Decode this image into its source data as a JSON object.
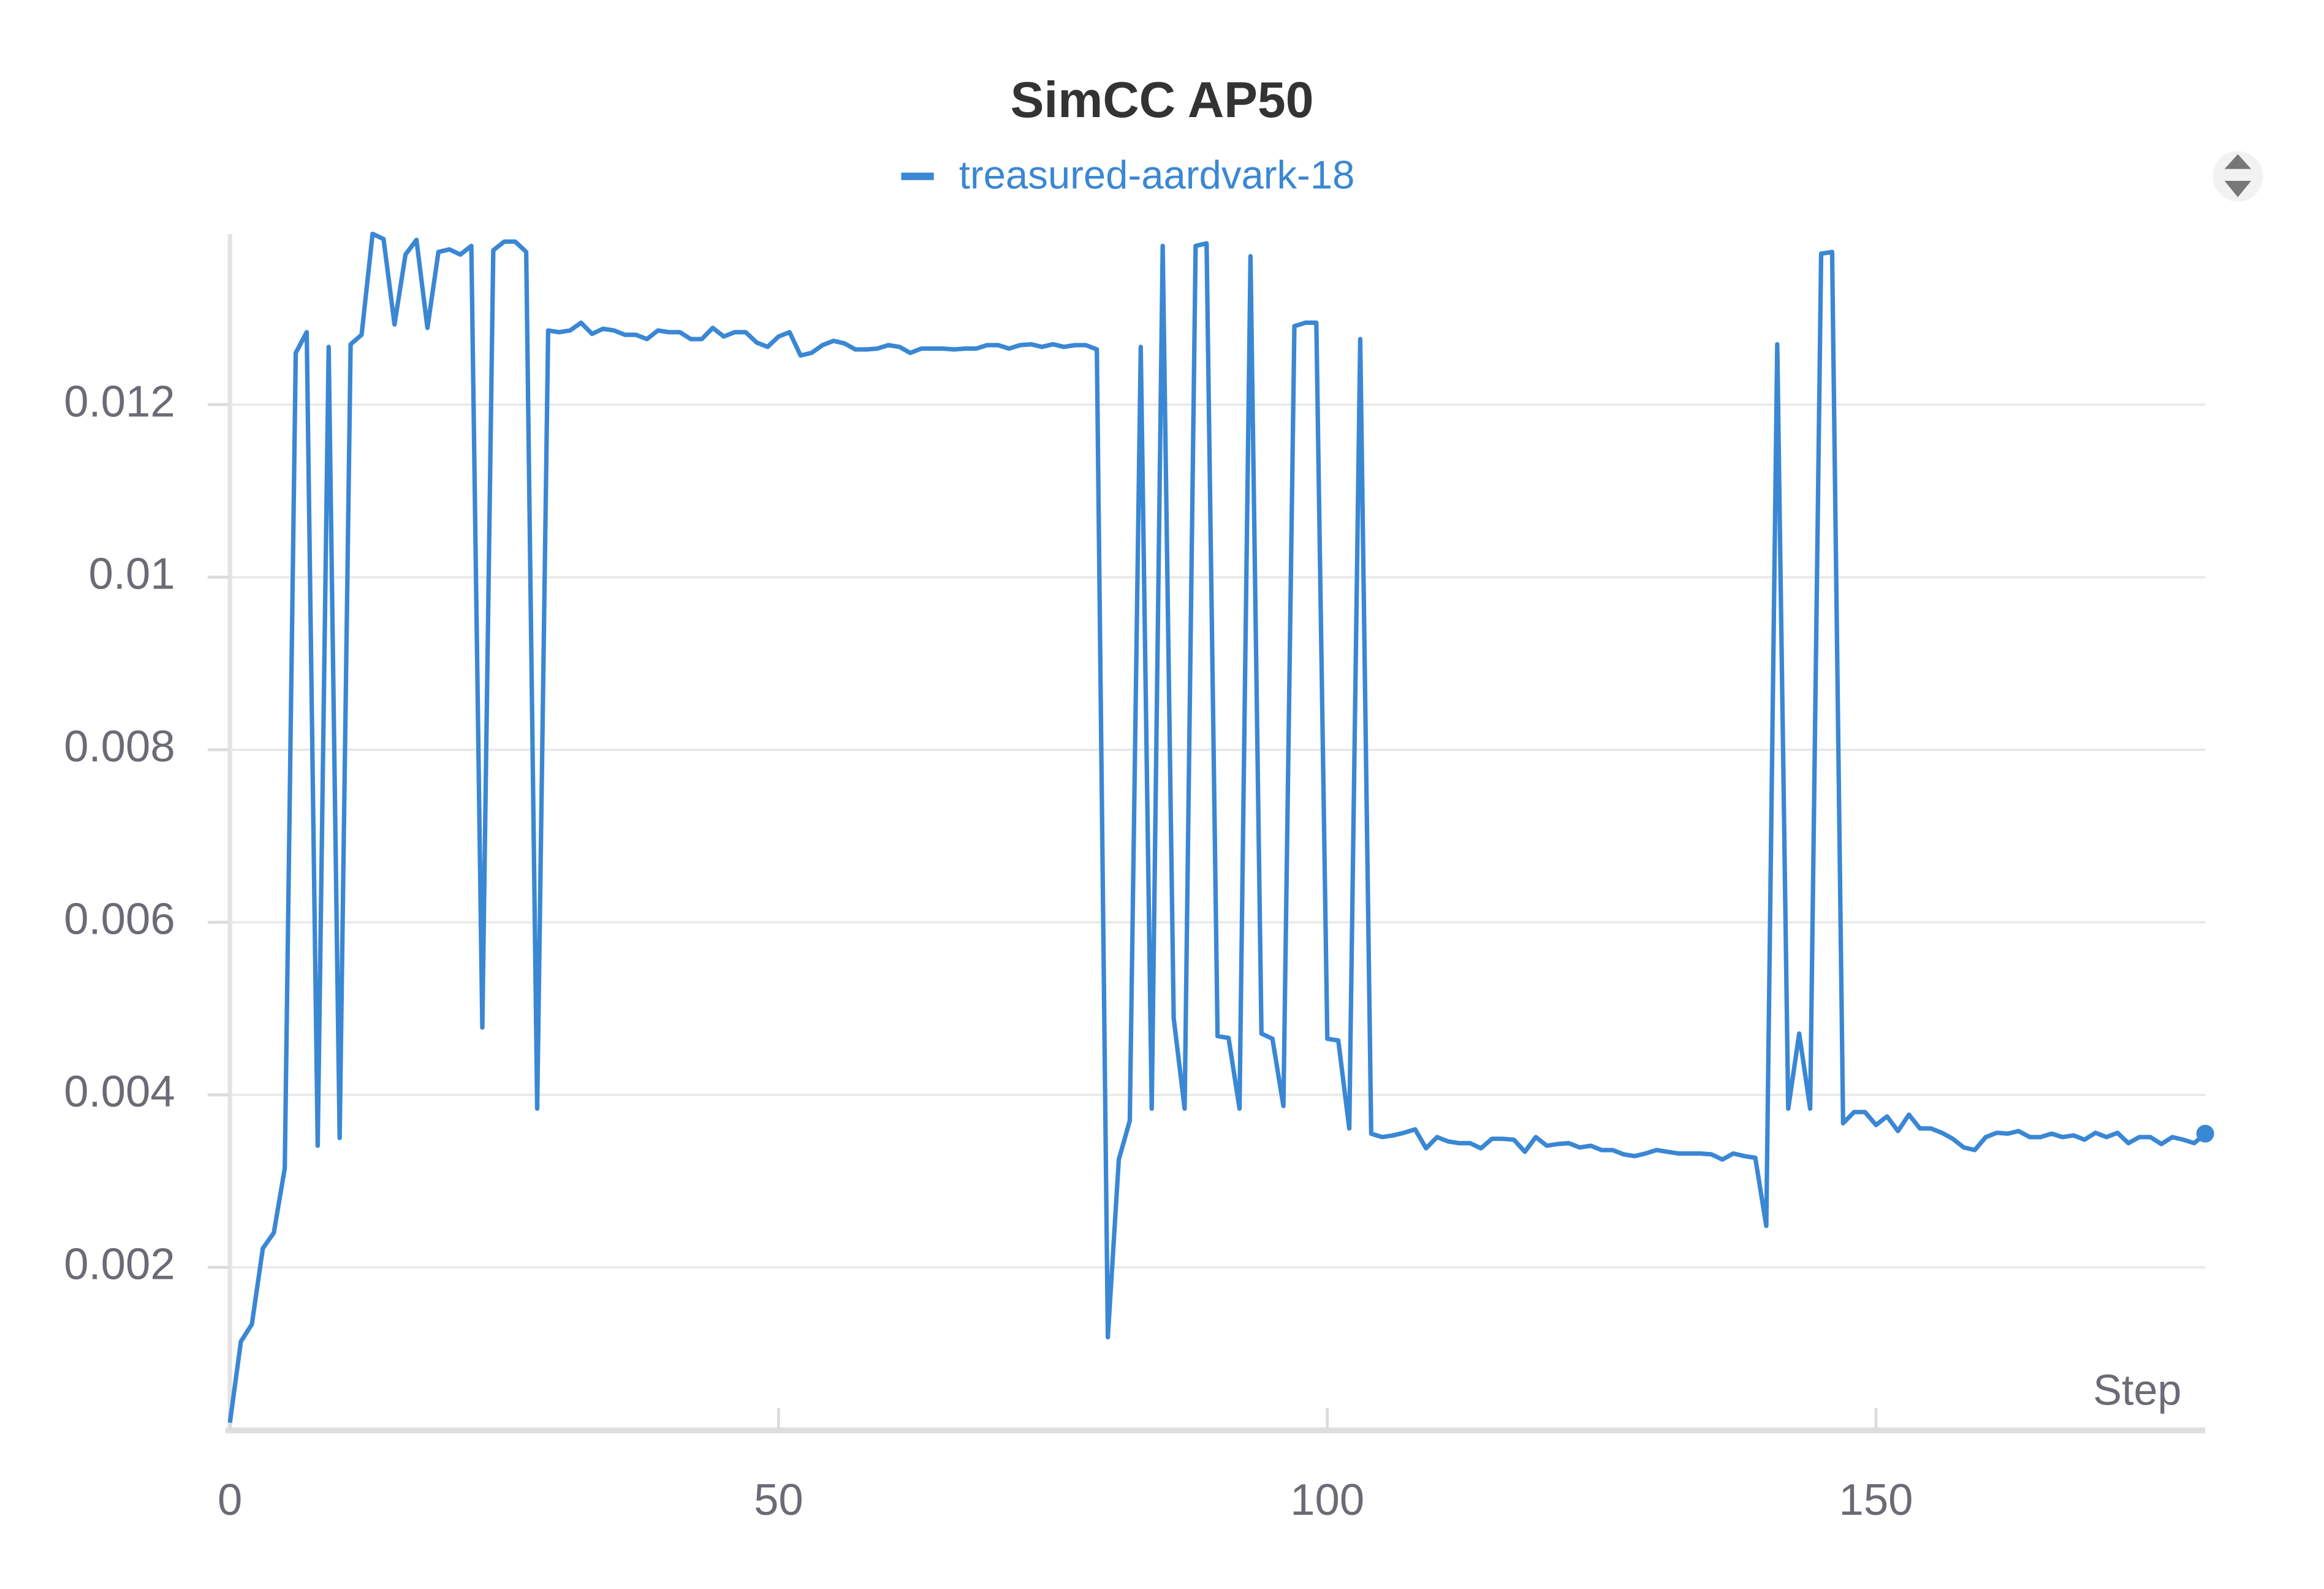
{
  "chart_data": {
    "type": "line",
    "title": "SimCC AP50",
    "x_label": "Step",
    "x": [
      0,
      1,
      2,
      3,
      4,
      5,
      6,
      7,
      8,
      9,
      10,
      11,
      12,
      13,
      14,
      15,
      16,
      17,
      18,
      19,
      20,
      21,
      22,
      23,
      24,
      25,
      26,
      27,
      28,
      29,
      30,
      31,
      32,
      33,
      34,
      35,
      36,
      37,
      38,
      39,
      40,
      41,
      42,
      43,
      44,
      45,
      46,
      47,
      48,
      49,
      50,
      51,
      52,
      53,
      54,
      55,
      56,
      57,
      58,
      59,
      60,
      61,
      62,
      63,
      64,
      65,
      66,
      67,
      68,
      69,
      70,
      71,
      72,
      73,
      74,
      75,
      76,
      77,
      78,
      79,
      80,
      81,
      82,
      83,
      84,
      85,
      86,
      87,
      88,
      89,
      90,
      91,
      92,
      93,
      94,
      95,
      96,
      97,
      98,
      99,
      100,
      101,
      102,
      103,
      104,
      105,
      106,
      107,
      108,
      109,
      110,
      111,
      112,
      113,
      114,
      115,
      116,
      117,
      118,
      119,
      120,
      121,
      122,
      123,
      124,
      125,
      126,
      127,
      128,
      129,
      130,
      131,
      132,
      133,
      134,
      135,
      136,
      137,
      138,
      139,
      140,
      141,
      142,
      143,
      144,
      145,
      146,
      147,
      148,
      149,
      150,
      151,
      152,
      153,
      154,
      155,
      156,
      157,
      158,
      159,
      160,
      161,
      162,
      163,
      164,
      165,
      166,
      167,
      168,
      169,
      170,
      171,
      172,
      173,
      174,
      175,
      176,
      177,
      178,
      179,
      180
    ],
    "series": [
      {
        "name": "treasured-aardvark-18",
        "color": "#3a87d4",
        "values": [
          0.0002,
          0.00114,
          0.00134,
          0.00222,
          0.0024,
          0.00315,
          0.0126,
          0.01284,
          0.00341,
          0.01267,
          0.0035,
          0.0127,
          0.01281,
          0.01398,
          0.01392,
          0.01293,
          0.01374,
          0.01391,
          0.01289,
          0.01377,
          0.0138,
          0.01374,
          0.01384,
          0.00478,
          0.01379,
          0.01389,
          0.01389,
          0.01377,
          0.00384,
          0.01286,
          0.01284,
          0.01286,
          0.01295,
          0.01282,
          0.01288,
          0.01286,
          0.01281,
          0.01281,
          0.01276,
          0.01286,
          0.01284,
          0.01284,
          0.01276,
          0.01276,
          0.01289,
          0.01279,
          0.01284,
          0.01284,
          0.01272,
          0.01267,
          0.01279,
          0.01284,
          0.01257,
          0.0126,
          0.01269,
          0.01274,
          0.01271,
          0.01264,
          0.01264,
          0.01265,
          0.01269,
          0.01267,
          0.0126,
          0.01265,
          0.01265,
          0.01265,
          0.01264,
          0.01265,
          0.01265,
          0.01269,
          0.01269,
          0.01265,
          0.01269,
          0.0127,
          0.01267,
          0.0127,
          0.01267,
          0.01269,
          0.01269,
          0.01264,
          0.00119,
          0.00325,
          0.0037,
          0.01267,
          0.00384,
          0.01384,
          0.00489,
          0.00384,
          0.01384,
          0.01387,
          0.00468,
          0.00466,
          0.00384,
          0.01372,
          0.00471,
          0.00465,
          0.00387,
          0.01291,
          0.01295,
          0.01295,
          0.00465,
          0.00463,
          0.00361,
          0.01276,
          0.00355,
          0.00351,
          0.00353,
          0.00356,
          0.0036,
          0.00338,
          0.00351,
          0.00346,
          0.00344,
          0.00344,
          0.00338,
          0.00349,
          0.00349,
          0.00348,
          0.00334,
          0.00351,
          0.00341,
          0.00343,
          0.00344,
          0.00339,
          0.00341,
          0.00336,
          0.00336,
          0.00331,
          0.00329,
          0.00332,
          0.00336,
          0.00334,
          0.00332,
          0.00332,
          0.00332,
          0.00331,
          0.00325,
          0.00332,
          0.00329,
          0.00327,
          0.00248,
          0.0127,
          0.00384,
          0.00471,
          0.00384,
          0.01375,
          0.01377,
          0.00367,
          0.0038,
          0.0038,
          0.00365,
          0.00375,
          0.00358,
          0.00377,
          0.00361,
          0.00361,
          0.00356,
          0.00349,
          0.00339,
          0.00336,
          0.00351,
          0.00356,
          0.00355,
          0.00358,
          0.00351,
          0.00351,
          0.00355,
          0.00351,
          0.00353,
          0.00348,
          0.00356,
          0.00351,
          0.00356,
          0.00344,
          0.00351,
          0.00351,
          0.00343,
          0.00351,
          0.00348,
          0.00344,
          0.00355
        ]
      }
    ],
    "xlim": [
      0,
      180
    ],
    "xticks": [
      0,
      50,
      100,
      150
    ],
    "ylim": [
      0.0001,
      0.014
    ],
    "yticks": [
      0.002,
      0.004,
      0.006,
      0.008,
      0.01,
      0.012
    ],
    "grid": true
  }
}
